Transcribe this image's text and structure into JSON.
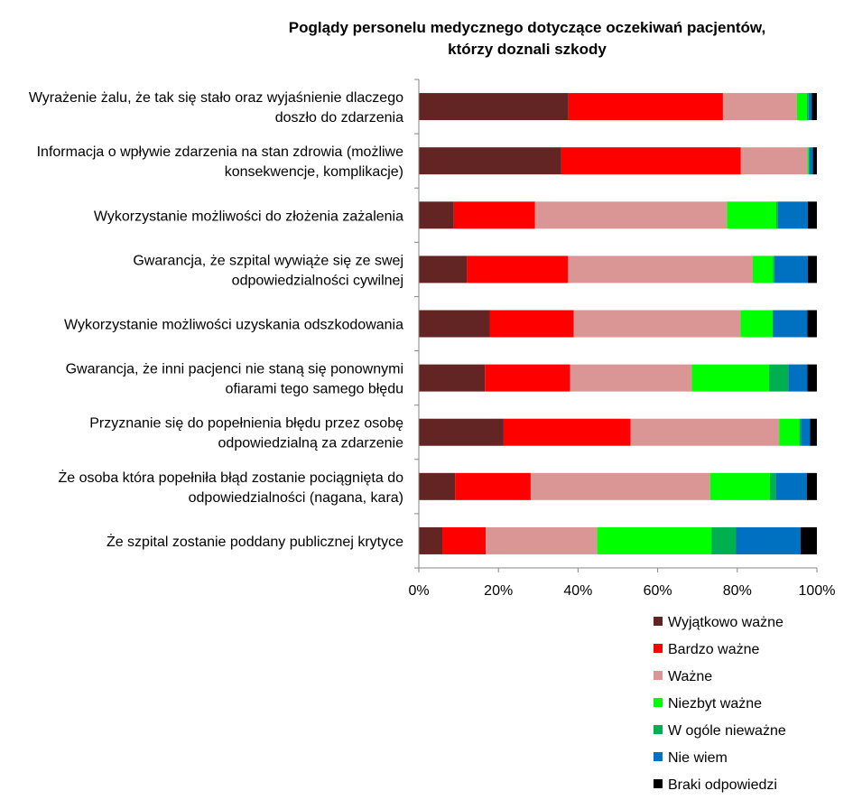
{
  "chart_data": {
    "type": "bar",
    "orientation": "horizontal",
    "stacked": "percent",
    "title_lines": [
      "Poglądy personelu medycznego dotyczące oczekiwań pacjentów,",
      "którzy doznali szkody"
    ],
    "categories": [
      [
        "Wyrażenie żalu, że tak się stało oraz wyjaśnienie dlaczego",
        "doszło do zdarzenia"
      ],
      [
        "Informacja o wpływie zdarzenia na stan zdrowia (możliwe",
        "konsekwencje, komplikacje)"
      ],
      [
        "Wykorzystanie możliwości do złożenia zażalenia"
      ],
      [
        "Gwarancja, że szpital wywiąże się ze swej",
        "odpowiedzialności cywilnej"
      ],
      [
        "Wykorzystanie możliwości uzyskania odszkodowania"
      ],
      [
        "Gwarancja, że inni pacjenci nie staną się ponownymi",
        "ofiarami tego samego błędu"
      ],
      [
        "Przyznanie się do popełnienia błędu przez osobę",
        "odpowiedzialną za zdarzenie"
      ],
      [
        "Że osoba która popełniła błąd zostanie pociągnięta do",
        "odpowiedzialności (nagana, kara)"
      ],
      [
        "Że szpital zostanie poddany publicznej krytyce"
      ]
    ],
    "series": [
      {
        "name": "Wyjątkowo ważne",
        "color": "#632523",
        "values": [
          37.6,
          35.8,
          8.8,
          12.1,
          17.8,
          16.6,
          21.3,
          9.1,
          5.9
        ]
      },
      {
        "name": "Bardzo ważne",
        "color": "#ff0000",
        "values": [
          38.8,
          45.1,
          20.4,
          25.4,
          21.1,
          21.4,
          31.9,
          19.0,
          10.9
        ]
      },
      {
        "name": "Ważne",
        "color": "#d99694",
        "values": [
          18.6,
          16.7,
          48.2,
          46.4,
          41.9,
          30.6,
          37.3,
          45.1,
          28.0
        ]
      },
      {
        "name": "Niezbyt ważne",
        "color": "#00ff00",
        "values": [
          2.5,
          0.3,
          12.4,
          5.1,
          8.1,
          19.4,
          5.1,
          15.0,
          28.7
        ]
      },
      {
        "name": "W ogóle nieważne",
        "color": "#00b050",
        "values": [
          0.4,
          0.2,
          0.4,
          0.3,
          0.1,
          4.8,
          0.4,
          1.5,
          6.2
        ]
      },
      {
        "name": "Nie wiem",
        "color": "#0070c0",
        "values": [
          0.8,
          0.9,
          7.5,
          8.4,
          8.6,
          4.8,
          2.3,
          7.8,
          16.2
        ]
      },
      {
        "name": "Braki odpowiedzi",
        "color": "#000000",
        "values": [
          1.3,
          1.0,
          2.3,
          2.3,
          2.4,
          2.4,
          1.7,
          2.5,
          4.1
        ]
      }
    ],
    "xlim": [
      0,
      100
    ],
    "x_ticks": [
      "0%",
      "20%",
      "40%",
      "60%",
      "80%",
      "100%"
    ],
    "xlabel": "",
    "ylabel": "",
    "grid": false,
    "legend_position": "bottom-right"
  }
}
